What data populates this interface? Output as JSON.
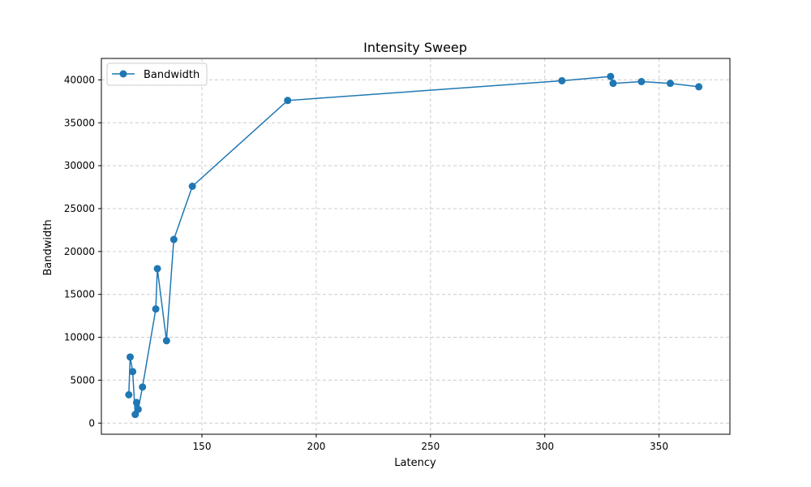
{
  "colors": {
    "series": "#1f77b4",
    "grid": "#cccccc",
    "axes": "#000000",
    "background": "#ffffff"
  },
  "chart_data": {
    "type": "line",
    "title": "Intensity Sweep",
    "xlabel": "Latency",
    "ylabel": "Bandwidth",
    "xlim": [
      106,
      381
    ],
    "ylim": [
      -1300,
      42500
    ],
    "xticks": [
      150,
      200,
      250,
      300,
      350
    ],
    "yticks": [
      0,
      5000,
      10000,
      15000,
      20000,
      25000,
      30000,
      35000,
      40000
    ],
    "grid": true,
    "grid_style": "dashed",
    "legend_position": "top-left",
    "marker": "circle",
    "series": [
      {
        "name": "Bandwidth",
        "color": "#1f77b4",
        "x": [
          118.0,
          118.6,
          119.7,
          120.8,
          121.4,
          122.1,
          124.0,
          129.8,
          130.5,
          134.5,
          137.7,
          145.8,
          187.5,
          307.5,
          328.8,
          329.9,
          342.3,
          354.9,
          367.4
        ],
        "y": [
          3300,
          7700,
          6000,
          1000,
          2400,
          1600,
          4200,
          13300,
          18000,
          9600,
          21400,
          27600,
          37600,
          39900,
          40400,
          39600,
          39800,
          39600,
          39200
        ]
      }
    ]
  }
}
